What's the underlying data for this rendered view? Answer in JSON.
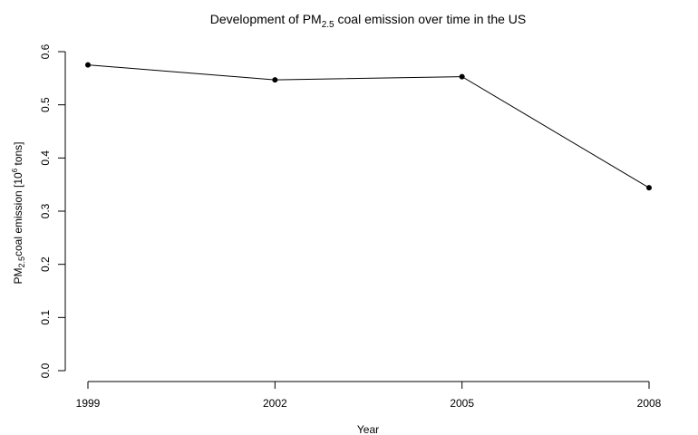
{
  "chart_data": {
    "type": "line",
    "title": {
      "pre": "Development of PM",
      "sub": "2.5",
      "post": " coal emission over time in the US"
    },
    "xlabel": "Year",
    "ylabel": {
      "pre": "PM",
      "sub": "2.5",
      "mid": "coal emission [10",
      "sup": "6",
      "post": " tons]"
    },
    "x": [
      1999,
      2002,
      2005,
      2008
    ],
    "x_tick_labels": [
      "1999",
      "2002",
      "2005",
      "2008"
    ],
    "series": [
      {
        "values": [
          0.575,
          0.547,
          0.553,
          0.344
        ]
      }
    ],
    "y_ticks": [
      0.0,
      0.1,
      0.2,
      0.3,
      0.4,
      0.5,
      0.6
    ],
    "y_tick_labels": [
      "0.0",
      "0.1",
      "0.2",
      "0.3",
      "0.4",
      "0.5",
      "0.6"
    ],
    "ylim": [
      0.0,
      0.6
    ],
    "grid": false,
    "colors": {
      "line": "#000000",
      "points": "#000000"
    }
  }
}
